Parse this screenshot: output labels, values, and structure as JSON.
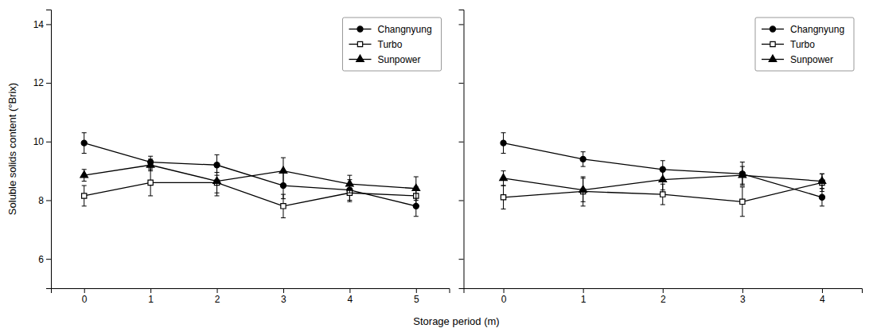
{
  "chart_data": [
    {
      "type": "line",
      "ylabel": "Soluble solids content (°Brix)",
      "xlabel": "Storage period (m)",
      "x": [
        0,
        1,
        2,
        3,
        4,
        5
      ],
      "xlim": [
        -0.5,
        5.5
      ],
      "xticks": [
        0,
        1,
        2,
        3,
        4,
        5
      ],
      "ylim": [
        5.0,
        14.5
      ],
      "yticks": [
        6,
        8,
        10,
        12,
        14
      ],
      "grid": false,
      "legend": "upper right",
      "series": [
        {
          "name": "Changnyung",
          "color": "black",
          "marker": "circle",
          "line_style": "solid",
          "values": [
            9.95,
            9.3,
            9.2,
            8.5,
            8.35,
            7.8
          ],
          "errors": [
            0.35,
            0.2,
            0.35,
            0.45,
            0.35,
            0.35
          ]
        },
        {
          "name": "Turbo",
          "color": "black",
          "marker": "square-open",
          "line_style": "solid",
          "values": [
            8.15,
            8.6,
            8.6,
            7.8,
            8.25,
            8.15
          ],
          "errors": [
            0.35,
            0.45,
            0.35,
            0.4,
            0.3,
            0.3
          ]
        },
        {
          "name": "Sunpower",
          "color": "black",
          "marker": "triangle",
          "line_style": "solid",
          "values": [
            8.85,
            9.2,
            8.65,
            9.0,
            8.55,
            8.4
          ],
          "errors": [
            0.2,
            0.2,
            0.5,
            0.45,
            0.3,
            0.4
          ]
        }
      ]
    },
    {
      "type": "line",
      "x": [
        0,
        1,
        2,
        3,
        4
      ],
      "xlim": [
        -0.5,
        4.5
      ],
      "xticks": [
        0,
        1,
        2,
        3,
        4
      ],
      "ylim": [
        5.0,
        14.5
      ],
      "yticks": [
        6,
        8,
        10,
        12,
        14
      ],
      "grid": false,
      "legend": "upper right",
      "tick_labels": "x",
      "series": [
        {
          "name": "Changnyung",
          "color": "black",
          "marker": "circle",
          "line_style": "solid",
          "values": [
            9.95,
            9.4,
            9.05,
            8.9,
            8.1
          ],
          "errors": [
            0.35,
            0.25,
            0.3,
            0.4,
            0.3
          ]
        },
        {
          "name": "Turbo",
          "color": "black",
          "marker": "square-open",
          "line_style": "solid",
          "values": [
            8.1,
            8.3,
            8.2,
            7.95,
            8.6
          ],
          "errors": [
            0.4,
            0.5,
            0.35,
            0.5,
            0.3
          ]
        },
        {
          "name": "Sunpower",
          "color": "black",
          "marker": "triangle",
          "line_style": "solid",
          "values": [
            8.75,
            8.35,
            8.7,
            8.85,
            8.65
          ],
          "errors": [
            0.25,
            0.4,
            0.35,
            0.3,
            0.25
          ]
        }
      ]
    }
  ]
}
